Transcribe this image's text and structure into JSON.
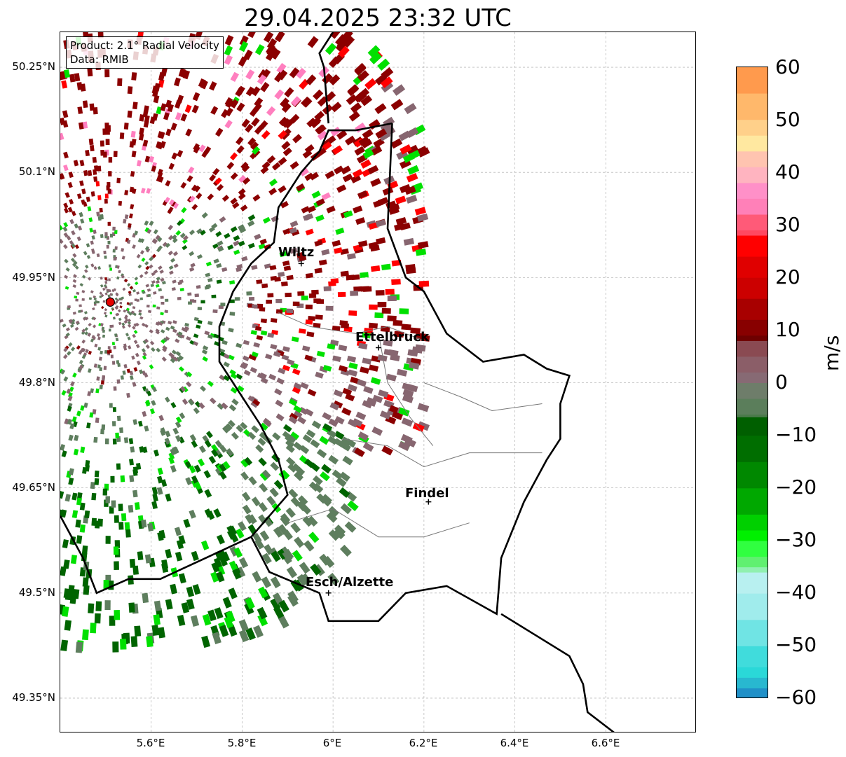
{
  "title": "29.04.2025 23:32 UTC",
  "info": {
    "product": "Product: 2.1° Radial Velocity",
    "data": "Data: RMIB"
  },
  "lat_labels": [
    "50.25°N",
    "50.1°N",
    "49.95°N",
    "49.8°N",
    "49.65°N",
    "49.5°N",
    "49.35°N"
  ],
  "lon_labels": [
    "5.6°E",
    "5.8°E",
    "6°E",
    "6.2°E",
    "6.4°E",
    "6.6°E"
  ],
  "cities": [
    {
      "name": "Wiltz",
      "lon": 5.93,
      "lat": 49.97
    },
    {
      "name": "Ettelbruck",
      "lon": 6.1,
      "lat": 49.85
    },
    {
      "name": "Findel",
      "lon": 6.21,
      "lat": 49.63
    },
    {
      "name": "Esch/Alzette",
      "lon": 5.99,
      "lat": 49.5
    }
  ],
  "radar_site": {
    "lon": 5.51,
    "lat": 49.915
  },
  "extent": {
    "lon_min": 5.4,
    "lon_max": 6.8,
    "lat_min": 49.3,
    "lat_max": 50.3
  },
  "colorbar": {
    "unit": "m/s",
    "min": -60,
    "max": 60,
    "tick_labels": [
      "60",
      "50",
      "40",
      "30",
      "20",
      "10",
      "0",
      "−10",
      "−20",
      "−30",
      "−40",
      "−50",
      "−60"
    ]
  },
  "colors": {
    "inbound_strong": "#1f77b4",
    "inbound_cyan": "#2ee0e0",
    "inbound_green": "#00e000",
    "inbound_dark_green": "#006400",
    "near_zero_neg": "#5e7e5e",
    "near_zero_pos": "#876670",
    "outbound_dark_red": "#8b0000",
    "outbound_red": "#ff0000",
    "outbound_pink": "#ff7fbf",
    "outbound_orange": "#ffa050"
  }
}
